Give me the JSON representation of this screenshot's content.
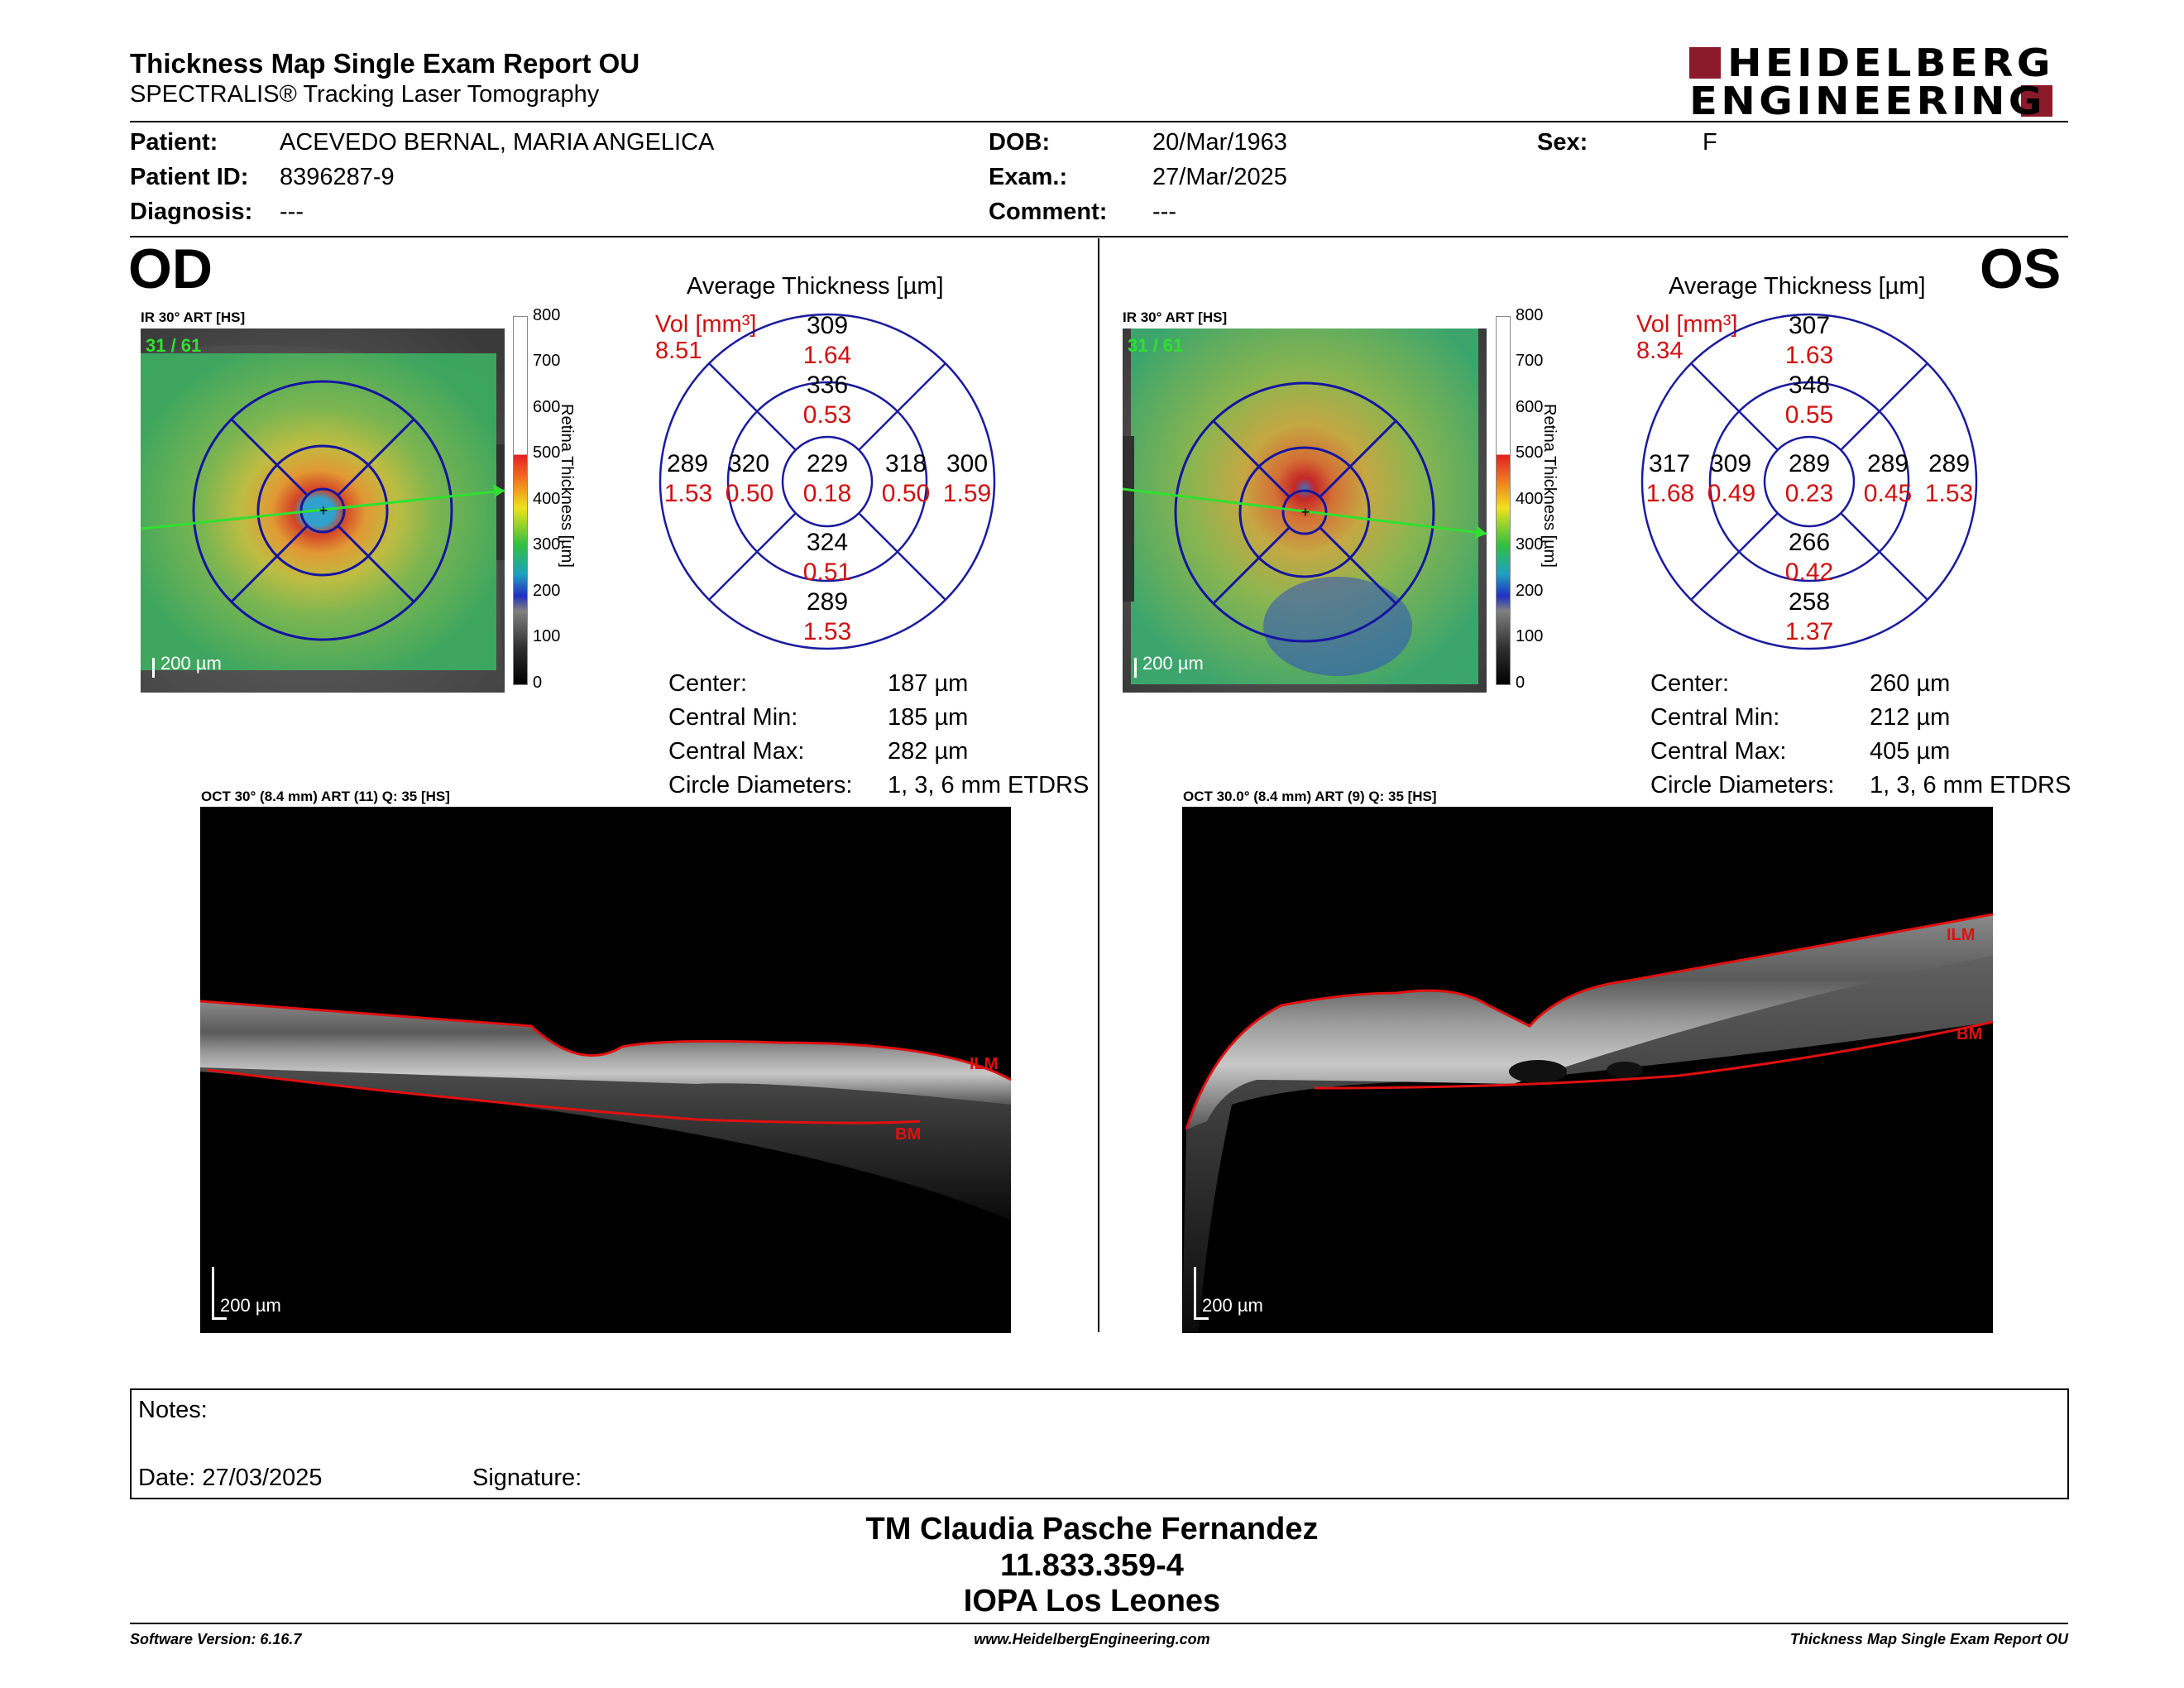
{
  "header": {
    "title": "Thickness Map Single Exam Report OU",
    "subtitle": "SPECTRALIS® Tracking Laser Tomography",
    "logo_line1": "HEIDELBERG",
    "logo_line2": "ENGINEERING"
  },
  "patient": {
    "patient_label": "Patient:",
    "patient_value": "ACEVEDO BERNAL, MARIA ANGELICA",
    "id_label": "Patient ID:",
    "id_value": "8396287-9",
    "diagnosis_label": "Diagnosis:",
    "diagnosis_value": "---",
    "dob_label": "DOB:",
    "dob_value": "20/Mar/1963",
    "exam_label": "Exam.:",
    "exam_value": "27/Mar/2025",
    "comment_label": "Comment:",
    "comment_value": "---",
    "sex_label": "Sex:",
    "sex_value": "F"
  },
  "colorbar": {
    "ticks": [
      "800",
      "700",
      "600",
      "500",
      "400",
      "300",
      "200",
      "100",
      "0"
    ],
    "label": "Retina Thickness [µm]"
  },
  "od": {
    "eye": "OD",
    "ir_label": "IR 30° ART [HS]",
    "frame": "31 / 61",
    "fundus_scale": "200 µm",
    "avg_title": "Average Thickness [µm]",
    "vol_label": "Vol [mm³]",
    "vol_total": "8.51",
    "sectors": {
      "outer_sup": {
        "t": "309",
        "v": "1.64"
      },
      "inner_sup": {
        "t": "336",
        "v": "0.53"
      },
      "outer_left": {
        "t": "289",
        "v": "1.53"
      },
      "inner_left": {
        "t": "320",
        "v": "0.50"
      },
      "center": {
        "t": "229",
        "v": "0.18"
      },
      "inner_right": {
        "t": "318",
        "v": "0.50"
      },
      "outer_right": {
        "t": "300",
        "v": "1.59"
      },
      "inner_inf": {
        "t": "324",
        "v": "0.51"
      },
      "outer_inf": {
        "t": "289",
        "v": "1.53"
      }
    },
    "stats": {
      "center_label": "Center:",
      "center_value": "187 µm",
      "min_label": "Central Min:",
      "min_value": "185 µm",
      "max_label": "Central Max:",
      "max_value": "282 µm",
      "diam_label": "Circle Diameters:",
      "diam_value": "1, 3, 6 mm ETDRS"
    },
    "oct_label": "OCT 30° (8.4 mm) ART (11) Q: 35 [HS]",
    "ilm": "ILM",
    "bm": "BM",
    "oct_scale": "200 µm"
  },
  "os": {
    "eye": "OS",
    "ir_label": "IR 30° ART [HS]",
    "frame": "31 / 61",
    "fundus_scale": "200 µm",
    "avg_title": "Average Thickness [µm]",
    "vol_label": "Vol [mm³]",
    "vol_total": "8.34",
    "sectors": {
      "outer_sup": {
        "t": "307",
        "v": "1.63"
      },
      "inner_sup": {
        "t": "348",
        "v": "0.55"
      },
      "outer_left": {
        "t": "317",
        "v": "1.68"
      },
      "inner_left": {
        "t": "309",
        "v": "0.49"
      },
      "center": {
        "t": "289",
        "v": "0.23"
      },
      "inner_right": {
        "t": "289",
        "v": "0.45"
      },
      "outer_right": {
        "t": "289",
        "v": "1.53"
      },
      "inner_inf": {
        "t": "266",
        "v": "0.42"
      },
      "outer_inf": {
        "t": "258",
        "v": "1.37"
      }
    },
    "stats": {
      "center_label": "Center:",
      "center_value": "260 µm",
      "min_label": "Central Min:",
      "min_value": "212 µm",
      "max_label": "Central Max:",
      "max_value": "405 µm",
      "diam_label": "Circle Diameters:",
      "diam_value": "1, 3, 6 mm ETDRS"
    },
    "oct_label": "OCT 30.0° (8.4 mm) ART (9) Q: 35 [HS]",
    "ilm": "ILM",
    "bm": "BM",
    "oct_scale": "200 µm"
  },
  "notes": {
    "notes_label": "Notes:",
    "date_label": "Date: 27/03/2025",
    "signature_label": "Signature:"
  },
  "signature_block": {
    "name": "TM Claudia Pasche Fernandez",
    "id": "11.833.359-4",
    "institution": "IOPA Los Leones"
  },
  "footer": {
    "software": "Software Version: 6.16.7",
    "website": "www.HeidelbergEngineering.com",
    "report": "Thickness Map Single Exam Report OU"
  },
  "colors": {
    "accent_red": "#d01010",
    "logo_red": "#8b1a2b",
    "grid_blue": "#1a1aa0"
  }
}
